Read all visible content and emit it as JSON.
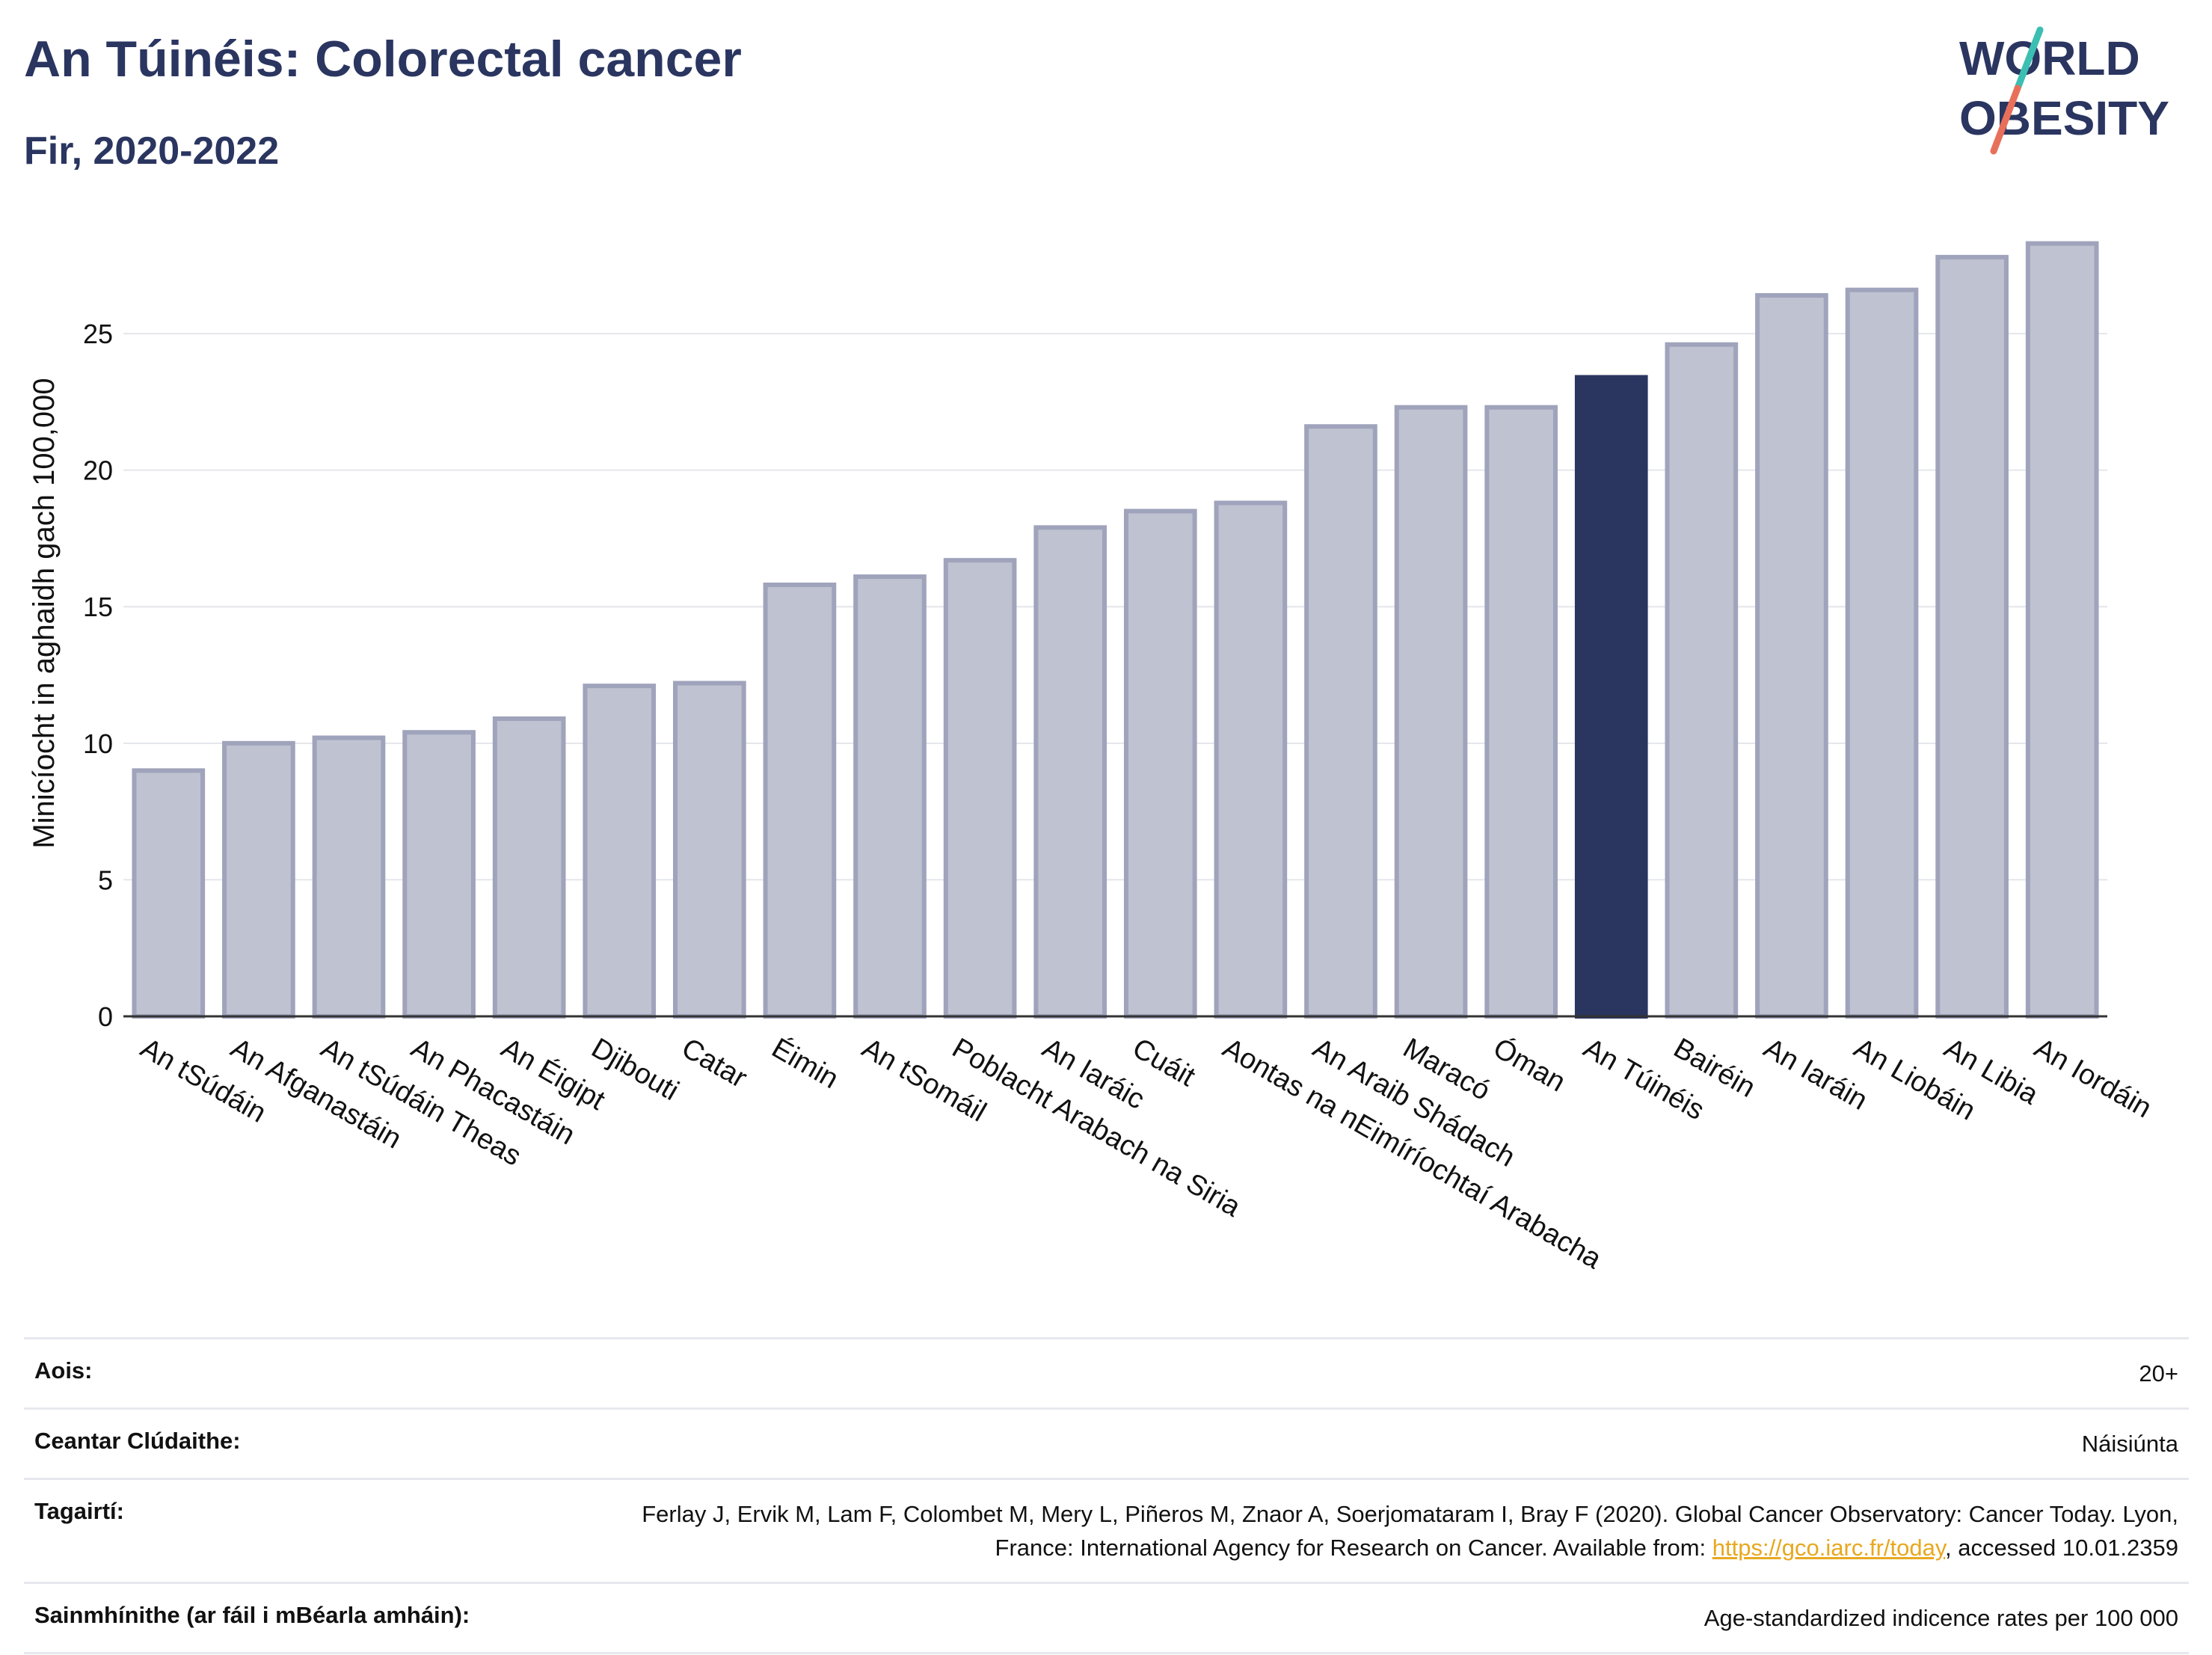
{
  "header": {
    "title": "An Túinéis: Colorectal cancer",
    "subtitle": "Fir, 2020-2022"
  },
  "logo": {
    "line1": "WORLD",
    "line2": "OBESITY",
    "text_color": "#2a3560",
    "slash_colors": [
      "#3bbfb2",
      "#e8705a"
    ]
  },
  "colors": {
    "bar": "#bfc2d0",
    "bar_border": "#9fa3bb",
    "highlight": "#2a3560",
    "grid": "#e5e6ec",
    "axis": "#333333",
    "link": "#e8a81f"
  },
  "chart_data": {
    "type": "bar",
    "title": "An Túinéis: Colorectal cancer",
    "subtitle": "Fir, 2020-2022",
    "ylabel": "Minicíocht in aghaidh gach 100,000",
    "xlabel": "",
    "ylim": [
      0,
      29
    ],
    "yticks": [
      0,
      5,
      10,
      15,
      20,
      25
    ],
    "grid": true,
    "highlight": "An Túinéis",
    "categories": [
      "An tSúdáin",
      "An Afganastáin",
      "An tSúdáin Theas",
      "An Phacastáin",
      "An Éigipt",
      "Djibouti",
      "Catar",
      "Éimin",
      "An tSomáil",
      "Poblacht Arabach na Siria",
      "An Iaráic",
      "Cuáit",
      "Aontas na nEimíríochtaí Arabacha",
      "An Araib Shádach",
      "Maracó",
      "Óman",
      "An Túinéis",
      "Bairéin",
      "An Iaráin",
      "An Liobáin",
      "An Libia",
      "An Iordáin"
    ],
    "values": [
      9.0,
      10.0,
      10.2,
      10.4,
      10.9,
      12.1,
      12.2,
      15.8,
      16.1,
      16.7,
      17.9,
      18.5,
      18.8,
      21.6,
      22.3,
      22.3,
      23.4,
      24.6,
      26.4,
      26.6,
      27.8,
      28.3
    ]
  },
  "info": [
    {
      "label": "Aois:",
      "value": "20+"
    },
    {
      "label": "Ceantar Clúdaithe:",
      "value": "Náisiúnta"
    },
    {
      "label": "Tagairtí:",
      "value_part1": "Ferlay J, Ervik M, Lam F, Colombet M, Mery L, Piñeros M, Znaor A, Soerjomataram I, Bray F (2020). Global Cancer Observatory: Cancer Today. Lyon, France: International Agency for Research on Cancer. Available from: ",
      "link": "https://gco.iarc.fr/today",
      "value_part2": ", accessed 10.01.2359"
    },
    {
      "label": "Sainmhínithe (ar fáil i mBéarla amháin):",
      "value": "Age-standardized indicence rates per 100 000"
    }
  ]
}
